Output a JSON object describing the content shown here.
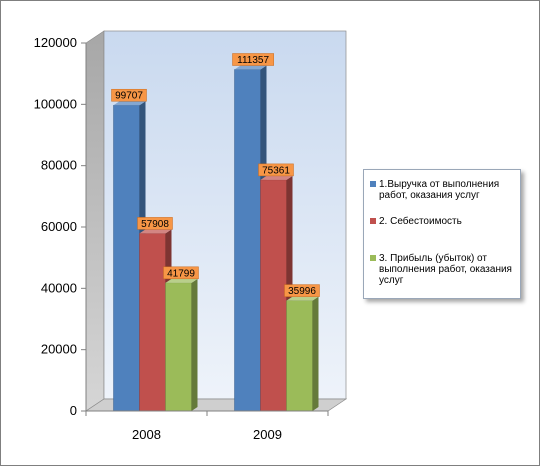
{
  "chart_data": {
    "type": "bar",
    "categories": [
      "2008",
      "2009"
    ],
    "series": [
      {
        "name": "1.Выручка от выполнения работ, оказания услуг",
        "values": [
          99707,
          111357
        ],
        "color": "#4f81bd"
      },
      {
        "name": "2. Себестоимость",
        "values": [
          57908,
          75361
        ],
        "color": "#c0504d"
      },
      {
        "name": "3. Прибыль (убыток) от выполнения работ, оказания услуг",
        "values": [
          41799,
          35996
        ],
        "color": "#9bbb59"
      }
    ],
    "ylim": [
      0,
      120000
    ],
    "yticks": [
      "0",
      "20000",
      "40000",
      "60000",
      "80000",
      "100000",
      "120000"
    ],
    "grid": false,
    "legend_position": "right",
    "data_labels": true,
    "three_d": true
  }
}
